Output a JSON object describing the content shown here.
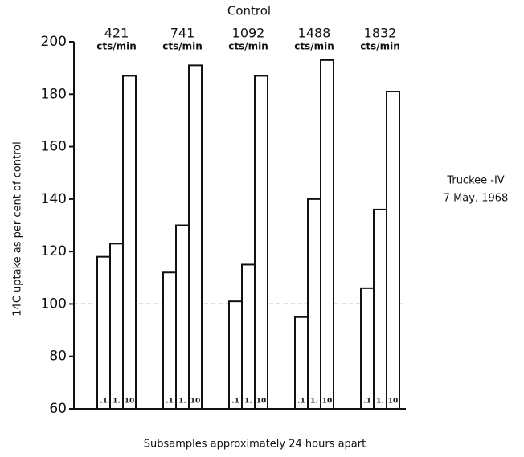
{
  "chart_data": {
    "type": "bar",
    "title": "Control",
    "categories": [
      "421",
      "741",
      "1092",
      "1488",
      "1832"
    ],
    "unit": "cts/min",
    "series": [
      {
        "name": ".1",
        "color": "#ffffff",
        "values": [
          118,
          112,
          101,
          95,
          106
        ]
      },
      {
        "name": "1.",
        "color": "#ffffff",
        "values": [
          123,
          130,
          115,
          140,
          136
        ]
      },
      {
        "name": "10",
        "color": "#ffffff",
        "values": [
          187,
          191,
          187,
          193,
          181
        ]
      }
    ],
    "reference_value": 100,
    "ylim": [
      60,
      200
    ],
    "yticks": [
      60,
      80,
      100,
      120,
      140,
      160,
      180,
      200
    ],
    "y_label": "14C uptake as per cent of control",
    "x_label": "Subsamples approximately 24 hours apart",
    "annotation": [
      "Truckee -IV",
      "7 May, 1968"
    ]
  }
}
